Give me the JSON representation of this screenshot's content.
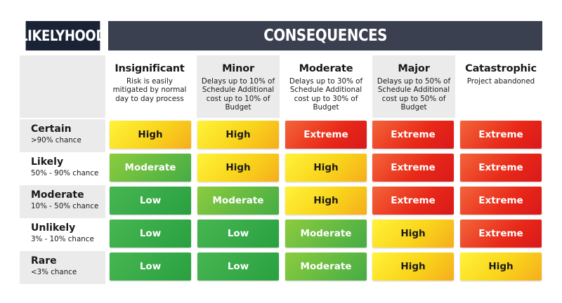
{
  "header": {
    "likelihood_title": "LIKELYHOOD",
    "consequences_title": "CONSEQUENCES"
  },
  "columns": [
    {
      "title": "Insignificant",
      "desc": "Risk is easily mitigated by normal day to day process"
    },
    {
      "title": "Minor",
      "desc": "Delays up to 10% of Schedule Additional cost up to 10% of Budget"
    },
    {
      "title": "Moderate",
      "desc": "Delays up to 30% of Schedule Additional cost up to 30% of Budget"
    },
    {
      "title": "Major",
      "desc": "Delays up to 50% of Schedule Additional cost up to 50% of Budget"
    },
    {
      "title": "Catastrophic",
      "desc": "Project abandoned"
    }
  ],
  "rows": [
    {
      "title": "Certain",
      "sub": ">90% chance",
      "cells": [
        "High",
        "High",
        "Extreme",
        "Extreme",
        "Extreme"
      ]
    },
    {
      "title": "Likely",
      "sub": "50% - 90% chance",
      "cells": [
        "Moderate",
        "High",
        "High",
        "Extreme",
        "Extreme"
      ]
    },
    {
      "title": "Moderate",
      "sub": "10% - 50% chance",
      "cells": [
        "Low",
        "Moderate",
        "High",
        "Extreme",
        "Extreme"
      ]
    },
    {
      "title": "Unlikely",
      "sub": "3% - 10% chance",
      "cells": [
        "Low",
        "Low",
        "Moderate",
        "High",
        "Extreme"
      ]
    },
    {
      "title": "Rare",
      "sub": "<3% chance",
      "cells": [
        "Low",
        "Low",
        "Moderate",
        "High",
        "High"
      ]
    }
  ],
  "colors": {
    "header_dark": "#1a2235",
    "header_slate": "#3b4051",
    "low": "#29a040",
    "moderate": "#6cbd44",
    "high": "#f9d41b",
    "extreme": "#e82818"
  }
}
